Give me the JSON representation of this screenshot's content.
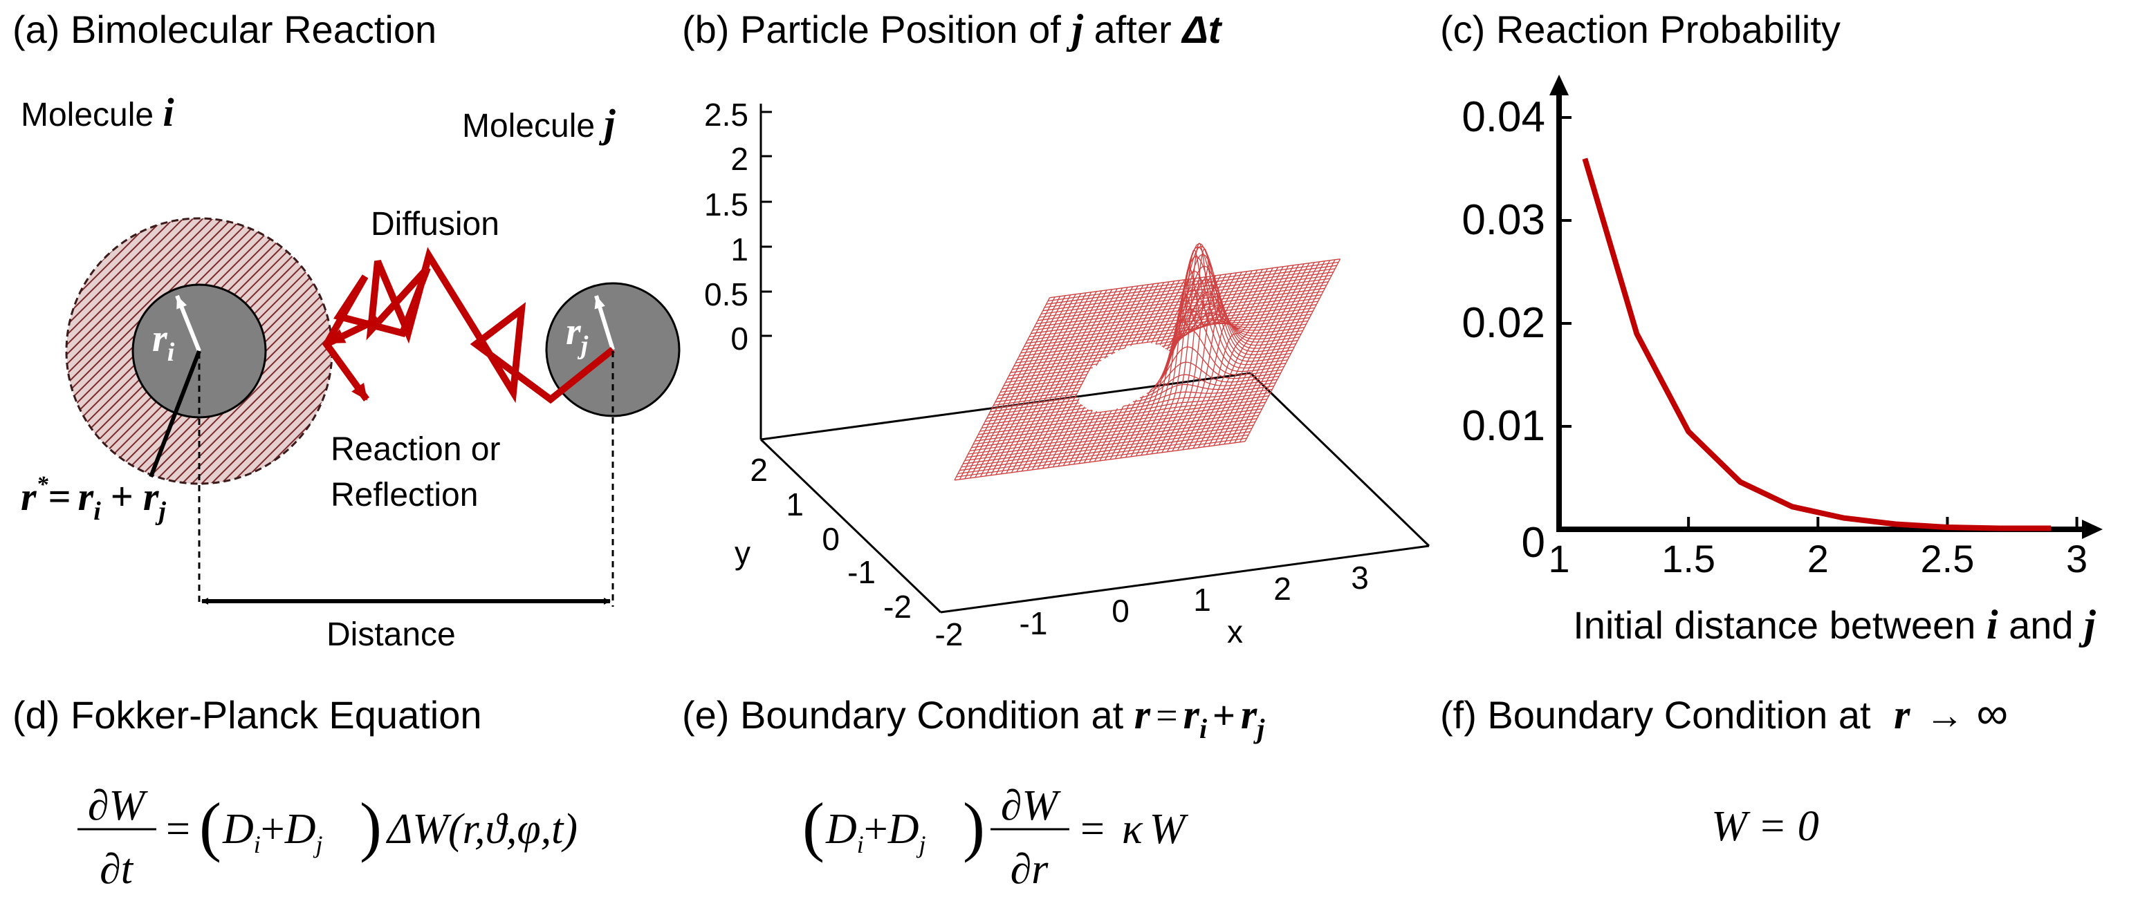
{
  "panels": {
    "a": {
      "title_prefix": "(a) ",
      "title": "Bimolecular Reaction",
      "molecule_word": "Molecule ",
      "molecule_i": "i",
      "molecule_j": "j",
      "r_symbol": "r",
      "sub_i": "i",
      "sub_j": "j",
      "star": "*",
      "equals": "=",
      "plus": "+",
      "diffusion": "Diffusion",
      "reaction_line1": "Reaction or",
      "reaction_line2": "Reflection",
      "distance": "Distance"
    },
    "b": {
      "title_prefix": "(b) ",
      "title_text": "Particle Position of ",
      "title_j": "j",
      "title_after": " after ",
      "title_dt": "Δt",
      "z_ticks": [
        "2.5",
        "2",
        "1.5",
        "1",
        "0.5",
        "0"
      ],
      "y_ticks": [
        "2",
        "1",
        "0",
        "-1",
        "-2"
      ],
      "x_ticks": [
        "-2",
        "-1",
        "0",
        "1",
        "2",
        "3"
      ],
      "xlabel": "x",
      "ylabel": "y"
    },
    "c": {
      "title_prefix": "(c) ",
      "title": "Reaction Probability",
      "xlabel_text": "Initial distance between ",
      "xlabel_i": "i",
      "xlabel_and": " and ",
      "xlabel_j": "j"
    },
    "d": {
      "title_prefix": "(d) ",
      "title": "Fokker-Planck Equation"
    },
    "e": {
      "title_prefix": "(e) ",
      "title": "Boundary Condition at "
    },
    "f": {
      "title_prefix": "(f) ",
      "title": "Boundary Condition at ",
      "arrow": "→",
      "infinity": "∞"
    }
  },
  "equations": {
    "partial": "∂",
    "W": "W",
    "t": "t",
    "r": "r",
    "D": "D",
    "i": "i",
    "j": "j",
    "plus": "+",
    "equals": "=",
    "laplace_term": "ΔW(r,ϑ,φ,t)",
    "kappa": "κ",
    "W_zero": "W = 0"
  },
  "chart_data": {
    "type": "line",
    "x": [
      1.1,
      1.3,
      1.5,
      1.7,
      1.9,
      2.1,
      2.3,
      2.5,
      2.7,
      2.9
    ],
    "y": [
      0.036,
      0.019,
      0.0095,
      0.0046,
      0.0022,
      0.0011,
      0.0005,
      0.0002,
      0.0001,
      0.0001
    ],
    "xlim": [
      1,
      3.1
    ],
    "ylim": [
      0,
      0.04
    ],
    "x_ticks": [
      "1",
      "1.5",
      "2",
      "2.5",
      "3"
    ],
    "y_ticks": [
      "0",
      "0.01",
      "0.02",
      "0.03",
      "0.04"
    ],
    "line_color": "#c00000"
  },
  "colors": {
    "accent_red": "#c00000",
    "sphere_gray": "#808080",
    "mesh_red": "#d04040"
  }
}
